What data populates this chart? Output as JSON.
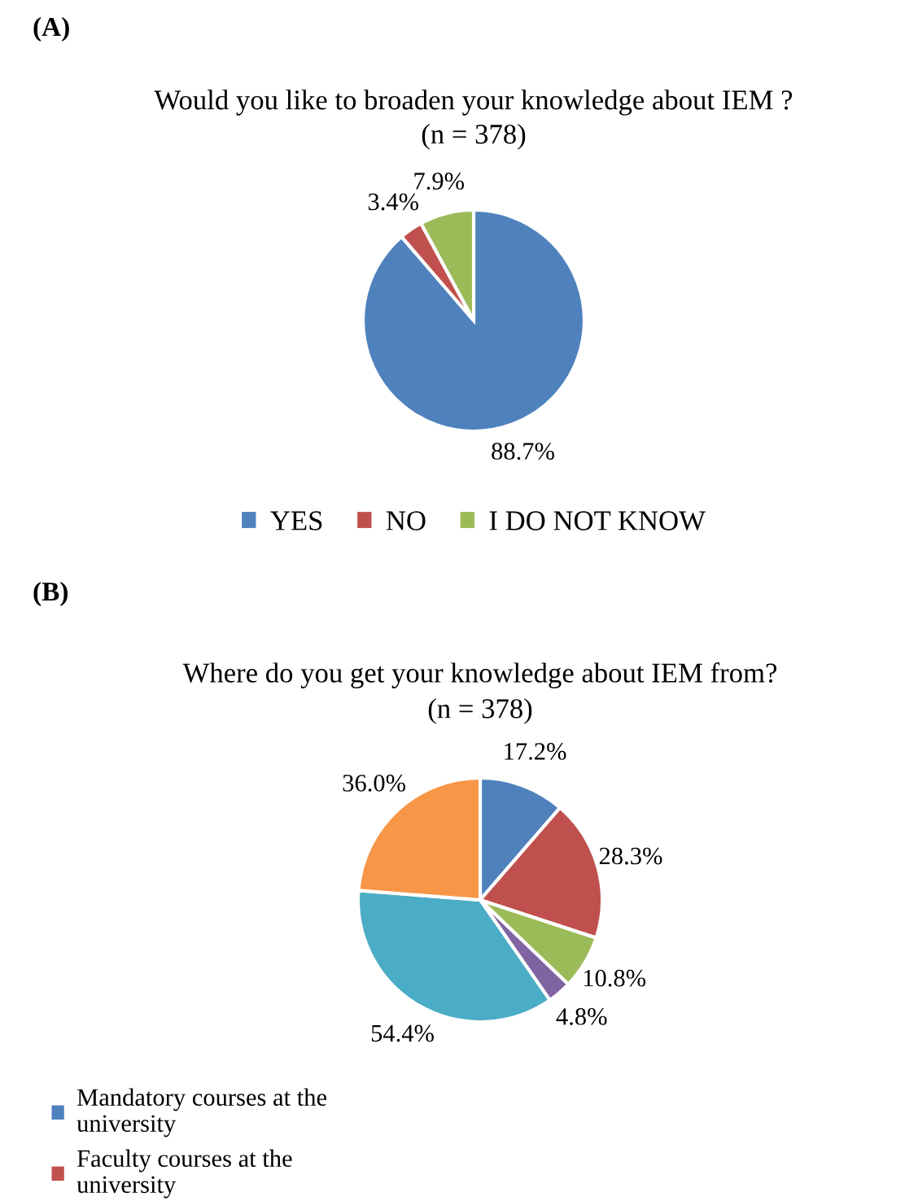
{
  "chart_data": [
    {
      "type": "pie",
      "title": "Would you like to broaden your knowledge about IEM ?",
      "subtitle": "(n = 378)",
      "annotations": [
        "(A)"
      ],
      "categories": [
        "YES",
        "NO",
        "I DO NOT KNOW"
      ],
      "values": [
        88.7,
        3.4,
        7.9
      ],
      "colors": [
        "#4f81bd",
        "#c0504d",
        "#9bbb59"
      ],
      "value_labels": [
        "88.7%",
        "3.4%",
        "7.9%"
      ],
      "legend": "bottom"
    },
    {
      "type": "pie",
      "title": "Where do you get your knowledge about IEM from?",
      "subtitle": "(n = 378)",
      "annotations": [
        "(B)"
      ],
      "categories": [
        "Mandatory courses at the\nuniversity",
        "Faculty courses at the\nuniversity",
        null,
        null,
        null,
        null
      ],
      "values": [
        17.2,
        28.3,
        10.8,
        4.8,
        54.4,
        36.0
      ],
      "colors": [
        "#4f81bd",
        "#c0504d",
        "#9bbb59",
        "#8064a2",
        "#4bacc6",
        "#f79646"
      ],
      "value_labels": [
        "17.2%",
        "28.3%",
        "10.8%",
        "4.8%",
        "54.4%",
        "36.0%"
      ],
      "legend": "bottom left"
    }
  ]
}
